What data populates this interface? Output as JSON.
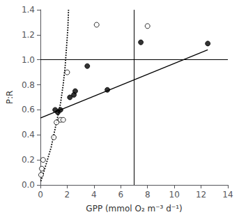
{
  "chart_data": {
    "type": "scatter",
    "xlabel": "GPP (mmol O₂ m⁻³ d⁻¹)",
    "ylabel": "P:R",
    "xlim": [
      0,
      14
    ],
    "ylim": [
      0.0,
      1.4
    ],
    "xticks": [
      0,
      2,
      4,
      6,
      8,
      10,
      12,
      14
    ],
    "yticks": [
      {
        "value": 0.0,
        "label": "0.0"
      },
      0.2,
      0.4,
      0.6,
      0.8,
      {
        "value": 1.0,
        "label": "1.0"
      },
      1.2,
      1.4
    ],
    "grid": false,
    "hline": 1.0,
    "vline": 7.0,
    "series": [
      {
        "type": "scatter",
        "marker": "open_circle",
        "color": "#000000",
        "x": [
          0.05,
          0.1,
          0.2,
          1.0,
          1.2,
          1.5,
          1.7,
          2.0,
          4.2,
          8.0
        ],
        "values": [
          0.08,
          0.13,
          0.2,
          0.38,
          0.5,
          0.52,
          0.52,
          0.9,
          1.28,
          1.27
        ]
      },
      {
        "type": "scatter",
        "marker": "filled_circle",
        "color": "#000000",
        "x": [
          1.1,
          1.3,
          1.5,
          2.2,
          2.5,
          2.6,
          3.5,
          5.0,
          7.5,
          12.5
        ],
        "values": [
          0.6,
          0.58,
          0.6,
          0.7,
          0.72,
          0.75,
          0.95,
          0.76,
          1.14,
          1.13
        ]
      },
      {
        "type": "line",
        "line_style": "solid",
        "color": "#000000",
        "x": [
          0,
          12.5
        ],
        "values": [
          0.535,
          1.08
        ]
      },
      {
        "type": "line",
        "line_style": "dotted",
        "color": "#000000",
        "x": [
          0.03,
          0.3,
          0.8,
          1.2,
          1.5,
          1.7,
          1.85,
          1.95,
          2.05,
          2.1
        ],
        "values": [
          0.03,
          0.12,
          0.3,
          0.5,
          0.65,
          0.8,
          0.95,
          1.1,
          1.25,
          1.4
        ]
      }
    ]
  }
}
